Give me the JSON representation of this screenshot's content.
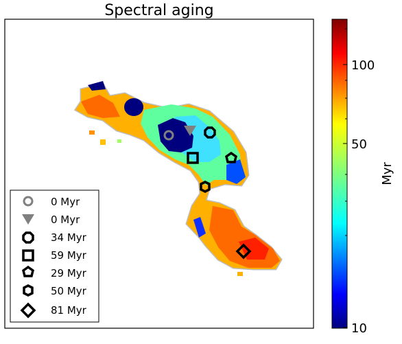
{
  "chart_data": {
    "type": "map",
    "title": "Spectral aging",
    "colorbar": {
      "label": "Myr",
      "scale": "log",
      "range": [
        10,
        140
      ],
      "ticks": [
        10,
        50,
        100
      ],
      "tick_labels": [
        "10",
        "50",
        "100"
      ],
      "colormap": "jet"
    },
    "legend": {
      "placement": "lower-left",
      "entries": [
        {
          "marker": "circle",
          "color": "#808080",
          "label": "0 Myr"
        },
        {
          "marker": "triangle-down",
          "color": "#808080",
          "label": "0 Myr"
        },
        {
          "marker": "octagon",
          "color": "#000000",
          "label": "34 Myr"
        },
        {
          "marker": "square",
          "color": "#000000",
          "label": "59 Myr"
        },
        {
          "marker": "pentagon",
          "color": "#000000",
          "label": "29 Myr"
        },
        {
          "marker": "hexagon",
          "color": "#000000",
          "label": "50 Myr"
        },
        {
          "marker": "diamond",
          "color": "#000000",
          "label": "81 Myr"
        }
      ]
    },
    "grid": false
  }
}
